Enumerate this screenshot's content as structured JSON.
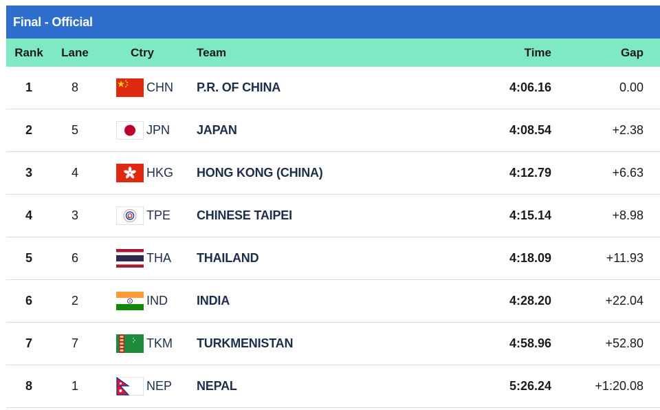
{
  "title": "Final - Official",
  "columns": {
    "rank": "Rank",
    "lane": "Lane",
    "ctry": "Ctry",
    "team": "Team",
    "time": "Time",
    "gap": "Gap"
  },
  "rows": [
    {
      "rank": "1",
      "lane": "8",
      "code": "CHN",
      "team": "P.R. OF CHINA",
      "time": "4:06.16",
      "gap": "0.00",
      "flag": "china-flag-icon"
    },
    {
      "rank": "2",
      "lane": "5",
      "code": "JPN",
      "team": "JAPAN",
      "time": "4:08.54",
      "gap": "+2.38",
      "flag": "japan-flag-icon"
    },
    {
      "rank": "3",
      "lane": "4",
      "code": "HKG",
      "team": "HONG KONG (CHINA)",
      "time": "4:12.79",
      "gap": "+6.63",
      "flag": "hong-kong-flag-icon"
    },
    {
      "rank": "4",
      "lane": "3",
      "code": "TPE",
      "team": "CHINESE TAIPEI",
      "time": "4:15.14",
      "gap": "+8.98",
      "flag": "chinese-taipei-flag-icon"
    },
    {
      "rank": "5",
      "lane": "6",
      "code": "THA",
      "team": "THAILAND",
      "time": "4:18.09",
      "gap": "+11.93",
      "flag": "thailand-flag-icon"
    },
    {
      "rank": "6",
      "lane": "2",
      "code": "IND",
      "team": "INDIA",
      "time": "4:28.20",
      "gap": "+22.04",
      "flag": "india-flag-icon"
    },
    {
      "rank": "7",
      "lane": "7",
      "code": "TKM",
      "team": "TURKMENISTAN",
      "time": "4:58.96",
      "gap": "+52.80",
      "flag": "turkmenistan-flag-icon"
    },
    {
      "rank": "8",
      "lane": "1",
      "code": "NEP",
      "team": "NEPAL",
      "time": "5:26.24",
      "gap": "+1:20.08",
      "flag": "nepal-flag-icon"
    }
  ],
  "colors": {
    "title_bar": "#2e6fce",
    "header_row": "#7fe8c4",
    "team_text": "#1c2e4a"
  }
}
